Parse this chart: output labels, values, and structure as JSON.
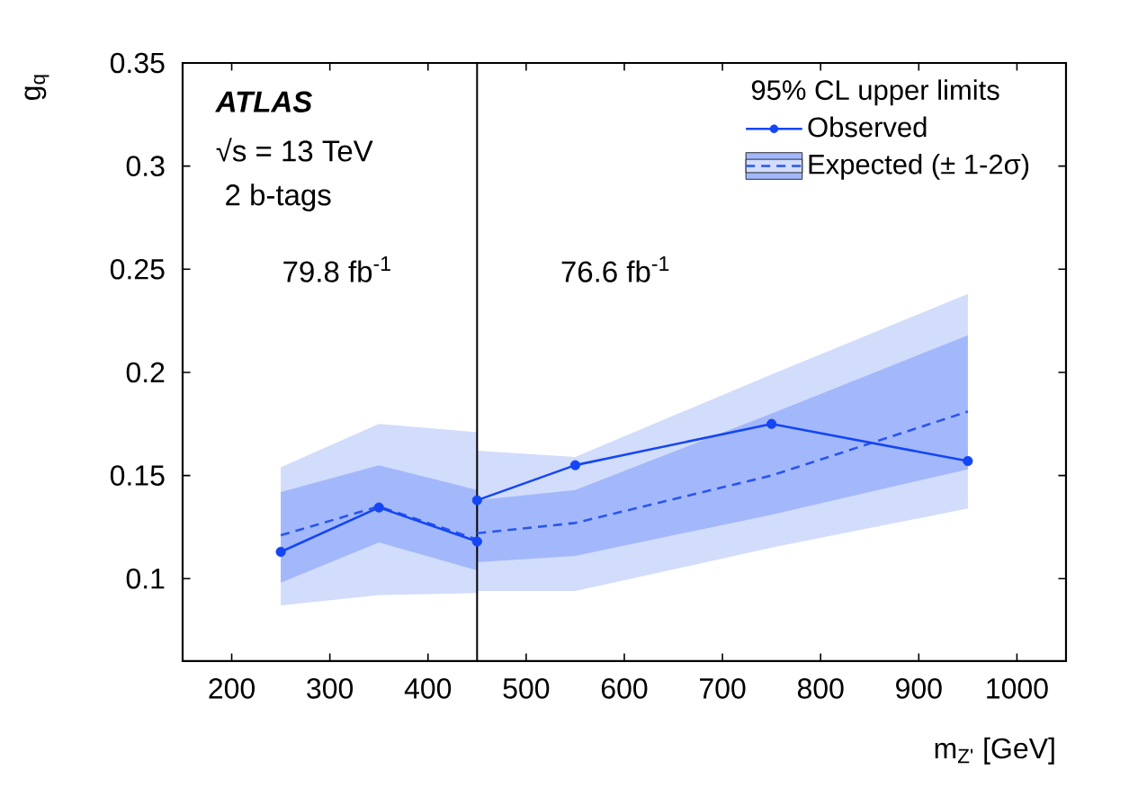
{
  "chart_data": {
    "type": "line",
    "xlabel": "m$_{Z'}$ [GeV]",
    "ylabel": "g$_{q}$",
    "legend_title": "95% CL upper limits",
    "series": [
      {
        "type": "area",
        "color": "#d2dcfb",
        "x": [
          250,
          350,
          450
        ],
        "values": [
          null,
          null,
          null
        ],
        "lower": [
          0.087,
          0.092,
          0.093
        ],
        "upper": [
          0.154,
          0.175,
          0.171
        ]
      },
      {
        "type": "area",
        "color": "#d2dcfb",
        "x": [
          450,
          550,
          750,
          950
        ],
        "values": [
          null,
          null,
          null,
          null
        ],
        "lower": [
          0.094,
          0.094,
          0.115,
          0.134
        ],
        "upper": [
          0.162,
          0.159,
          0.199,
          0.238
        ]
      },
      {
        "type": "area",
        "color": "#a3b8fb",
        "x": [
          250,
          350,
          450
        ],
        "values": [
          null,
          null,
          null
        ],
        "lower": [
          0.098,
          0.1175,
          0.104
        ],
        "upper": [
          0.142,
          0.155,
          0.143
        ]
      },
      {
        "type": "area",
        "color": "#a3b8fb",
        "x": [
          450,
          550,
          750,
          950
        ],
        "values": [
          null,
          null,
          null,
          null
        ],
        "lower": [
          0.108,
          0.111,
          0.131,
          0.153
        ],
        "upper": [
          0.138,
          0.143,
          0.18,
          0.218
        ]
      },
      {
        "name": "Expected (± 1-2σ)",
        "color": "#2a55ee",
        "marker": "none",
        "line_style": "dashed",
        "x": [
          250,
          350,
          450
        ],
        "values": [
          0.121,
          0.135,
          0.119
        ]
      },
      {
        "color": "#2a55ee",
        "marker": "none",
        "line_style": "dashed",
        "x": [
          450,
          550,
          750,
          950
        ],
        "values": [
          0.122,
          0.127,
          0.15,
          0.181
        ]
      },
      {
        "name": "Observed",
        "color": "#1446f5",
        "marker": "circle",
        "line_style": "solid",
        "x": [
          250,
          350,
          450
        ],
        "values": [
          0.113,
          0.1345,
          0.118
        ]
      },
      {
        "color": "#1446f5",
        "marker": "circle",
        "line_style": "solid",
        "x": [
          450,
          550,
          750,
          950
        ],
        "values": [
          0.138,
          0.155,
          0.175,
          0.157
        ]
      }
    ],
    "xlim": [
      150,
      1050
    ],
    "ylim": [
      0.06,
      0.35
    ],
    "xticks": [
      200,
      300,
      400,
      500,
      600,
      700,
      800,
      900,
      1000
    ],
    "yticks": [
      0.1,
      0.15,
      0.2,
      0.25,
      0.3,
      0.35
    ],
    "ref_lines": [
      {
        "axis": "x",
        "value": 450,
        "color": "#000000"
      }
    ],
    "annotations": [
      "ATLAS",
      "√s = 13 TeV",
      "2 b-tags",
      "79.8 fb$^{-1}$",
      "76.6 fb$^{-1}$"
    ],
    "legend": "top right",
    "grid": false
  }
}
